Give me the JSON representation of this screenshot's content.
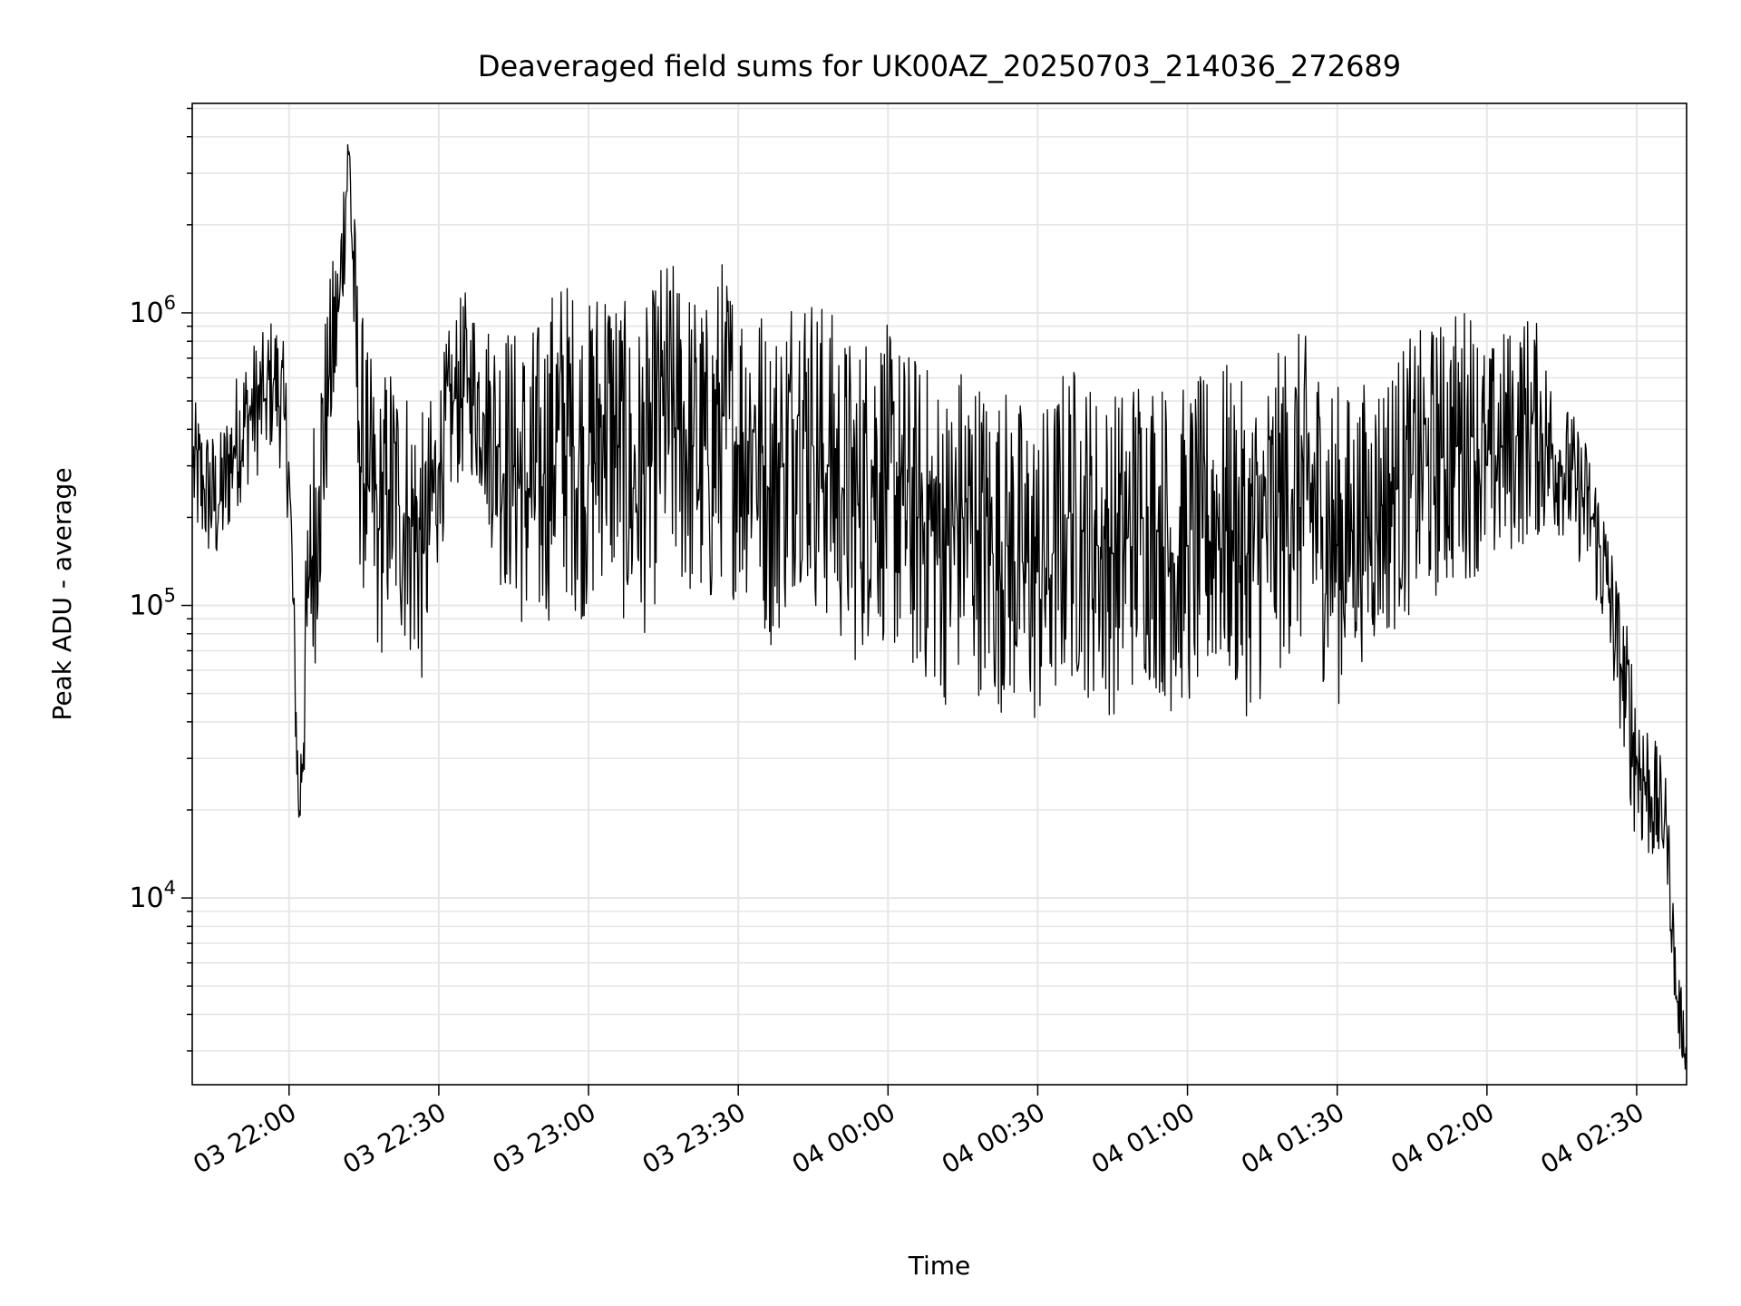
{
  "chart_data": {
    "type": "line",
    "title": "Deaveraged field sums for UK00AZ_20250703_214036_272689",
    "xlabel": "Time",
    "ylabel": "Peak ADU - average",
    "yscale": "log",
    "xlim": [
      "2025-07-03 21:40:36",
      "2025-07-04 02:40:00"
    ],
    "ylim": [
      2300,
      5200000
    ],
    "grid": true,
    "line_color": "#000000",
    "grid_color": "#e6e6e6",
    "x_ticks": [
      {
        "t": "2025-07-03 22:00",
        "label": "03 22:00"
      },
      {
        "t": "2025-07-03 22:30",
        "label": "03 22:30"
      },
      {
        "t": "2025-07-03 23:00",
        "label": "03 23:00"
      },
      {
        "t": "2025-07-03 23:30",
        "label": "03 23:30"
      },
      {
        "t": "2025-07-04 00:00",
        "label": "04 00:00"
      },
      {
        "t": "2025-07-04 00:30",
        "label": "04 00:30"
      },
      {
        "t": "2025-07-04 01:00",
        "label": "04 01:00"
      },
      {
        "t": "2025-07-04 01:30",
        "label": "04 01:30"
      },
      {
        "t": "2025-07-04 02:00",
        "label": "04 02:00"
      },
      {
        "t": "2025-07-04 02:30",
        "label": "04 02:30"
      }
    ],
    "y_ticks": [
      {
        "value": 10000,
        "base": "10",
        "exp": "4"
      },
      {
        "value": 100000,
        "base": "10",
        "exp": "5"
      },
      {
        "value": 1000000,
        "base": "10",
        "exp": "6"
      }
    ],
    "series": [
      {
        "x": [
          "2025-07-03 21:40:36",
          "2025-07-03 21:43",
          "2025-07-03 21:46",
          "2025-07-03 21:49",
          "2025-07-03 21:52",
          "2025-07-03 21:55",
          "2025-07-03 21:57",
          "2025-07-03 21:59",
          "2025-07-03 22:00",
          "2025-07-03 22:02",
          "2025-07-03 22:04",
          "2025-07-03 22:06",
          "2025-07-03 22:08",
          "2025-07-03 22:10",
          "2025-07-03 22:12",
          "2025-07-03 22:14",
          "2025-07-03 22:16",
          "2025-07-03 22:18",
          "2025-07-03 22:20",
          "2025-07-03 22:22",
          "2025-07-03 22:24",
          "2025-07-03 22:27",
          "2025-07-03 22:30",
          "2025-07-03 22:33",
          "2025-07-03 22:36",
          "2025-07-03 22:39",
          "2025-07-03 22:42",
          "2025-07-03 22:45",
          "2025-07-03 22:48",
          "2025-07-03 22:51",
          "2025-07-03 22:54",
          "2025-07-03 22:57",
          "2025-07-03 23:00",
          "2025-07-03 23:03",
          "2025-07-03 23:06",
          "2025-07-03 23:09",
          "2025-07-03 23:12",
          "2025-07-03 23:15",
          "2025-07-03 23:18",
          "2025-07-03 23:21",
          "2025-07-03 23:24",
          "2025-07-03 23:27",
          "2025-07-03 23:30",
          "2025-07-03 23:33",
          "2025-07-03 23:36",
          "2025-07-03 23:39",
          "2025-07-03 23:42",
          "2025-07-03 23:45",
          "2025-07-03 23:48",
          "2025-07-03 23:51",
          "2025-07-03 23:54",
          "2025-07-03 23:57",
          "2025-07-04 00:00",
          "2025-07-04 00:03",
          "2025-07-04 00:06",
          "2025-07-04 00:09",
          "2025-07-04 00:12",
          "2025-07-04 00:15",
          "2025-07-04 00:18",
          "2025-07-04 00:21",
          "2025-07-04 00:24",
          "2025-07-04 00:27",
          "2025-07-04 00:30",
          "2025-07-04 00:33",
          "2025-07-04 00:36",
          "2025-07-04 00:39",
          "2025-07-04 00:42",
          "2025-07-04 00:45",
          "2025-07-04 00:48",
          "2025-07-04 00:51",
          "2025-07-04 00:54",
          "2025-07-04 00:57",
          "2025-07-04 01:00",
          "2025-07-04 01:03",
          "2025-07-04 01:06",
          "2025-07-04 01:09",
          "2025-07-04 01:12",
          "2025-07-04 01:15",
          "2025-07-04 01:18",
          "2025-07-04 01:21",
          "2025-07-04 01:24",
          "2025-07-04 01:27",
          "2025-07-04 01:30",
          "2025-07-04 01:33",
          "2025-07-04 01:36",
          "2025-07-04 01:39",
          "2025-07-04 01:42",
          "2025-07-04 01:45",
          "2025-07-04 01:48",
          "2025-07-04 01:51",
          "2025-07-04 01:54",
          "2025-07-04 01:57",
          "2025-07-04 02:00",
          "2025-07-04 02:03",
          "2025-07-04 02:06",
          "2025-07-04 02:09",
          "2025-07-04 02:12",
          "2025-07-04 02:15",
          "2025-07-04 02:18",
          "2025-07-04 02:21",
          "2025-07-04 02:24",
          "2025-07-04 02:27",
          "2025-07-04 02:30",
          "2025-07-04 02:33",
          "2025-07-04 02:36",
          "2025-07-04 02:38",
          "2025-07-04 02:40"
        ],
        "values": [
          300000,
          250000,
          220000,
          350000,
          450000,
          500000,
          600000,
          450000,
          300000,
          18000,
          120000,
          250000,
          600000,
          1050000,
          3700000,
          400000,
          250000,
          180000,
          250000,
          220000,
          200000,
          150000,
          300000,
          500000,
          600000,
          450000,
          350000,
          300000,
          250000,
          280000,
          400000,
          350000,
          300000,
          450000,
          350000,
          250000,
          300000,
          450000,
          400000,
          350000,
          300000,
          450000,
          350000,
          400000,
          250000,
          300000,
          450000,
          350000,
          300000,
          250000,
          220000,
          300000,
          250000,
          220000,
          200000,
          180000,
          160000,
          200000,
          180000,
          150000,
          160000,
          140000,
          130000,
          150000,
          200000,
          180000,
          160000,
          150000,
          170000,
          200000,
          180000,
          150000,
          160000,
          170000,
          200000,
          180000,
          150000,
          170000,
          200000,
          250000,
          230000,
          200000,
          160000,
          180000,
          200000,
          220000,
          250000,
          280000,
          300000,
          320000,
          350000,
          380000,
          300000,
          350000,
          380000,
          420000,
          350000,
          300000,
          250000,
          200000,
          120000,
          60000,
          30000,
          22000,
          18000,
          4500,
          3000
        ],
        "jitter": [
          0.15,
          0.15,
          0.15,
          0.15,
          0.15,
          0.15,
          0.15,
          0.15,
          0.15,
          0.1,
          0.3,
          0.3,
          0.2,
          0.2,
          0.1,
          0.3,
          0.3,
          0.3,
          0.3,
          0.3,
          0.3,
          0.3,
          0.2,
          0.2,
          0.2,
          0.2,
          0.3,
          0.3,
          0.35,
          0.35,
          0.35,
          0.35,
          0.35,
          0.35,
          0.35,
          0.35,
          0.35,
          0.35,
          0.35,
          0.35,
          0.35,
          0.35,
          0.35,
          0.35,
          0.35,
          0.35,
          0.35,
          0.35,
          0.35,
          0.35,
          0.35,
          0.35,
          0.35,
          0.35,
          0.35,
          0.35,
          0.35,
          0.35,
          0.35,
          0.35,
          0.35,
          0.35,
          0.35,
          0.35,
          0.35,
          0.35,
          0.35,
          0.35,
          0.35,
          0.35,
          0.35,
          0.35,
          0.35,
          0.35,
          0.35,
          0.35,
          0.35,
          0.35,
          0.35,
          0.35,
          0.35,
          0.35,
          0.35,
          0.3,
          0.3,
          0.3,
          0.3,
          0.3,
          0.3,
          0.3,
          0.3,
          0.3,
          0.25,
          0.25,
          0.25,
          0.25,
          0.2,
          0.15,
          0.15,
          0.15,
          0.15,
          0.15,
          0.2,
          0.15,
          0.1,
          0.1,
          0.05
        ]
      }
    ]
  }
}
